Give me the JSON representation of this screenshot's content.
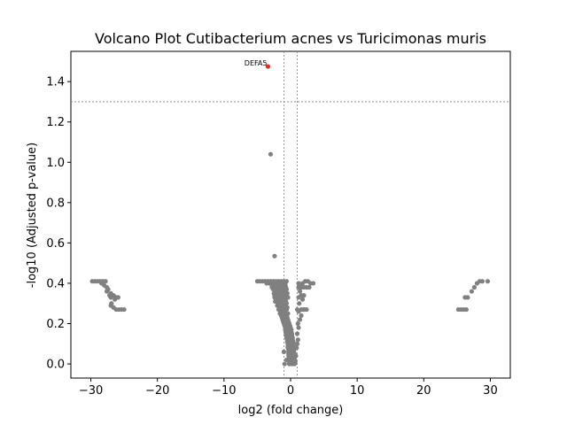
{
  "chart_data": {
    "type": "scatter",
    "title": "Volcano Plot Cutibacterium acnes vs Turicimonas muris",
    "xlabel": "log2 (fold change)",
    "ylabel": "-log10 (Adjusted p-value)",
    "xlim": [
      -33,
      33
    ],
    "ylim": [
      -0.07,
      1.55
    ],
    "xticks": [
      -30,
      -20,
      -10,
      0,
      10,
      20,
      30
    ],
    "xtick_labels": [
      "−30",
      "−20",
      "−10",
      "0",
      "10",
      "20",
      "30"
    ],
    "yticks": [
      0.0,
      0.2,
      0.4,
      0.6,
      0.8,
      1.0,
      1.2,
      1.4
    ],
    "ytick_labels": [
      "0.0",
      "0.2",
      "0.4",
      "0.6",
      "0.8",
      "1.0",
      "1.2",
      "1.4"
    ],
    "threshold_lines": {
      "vertical": [
        -1,
        1
      ],
      "horizontal": [
        1.3
      ]
    },
    "grid": false,
    "colors": {
      "nonsignificant": "#808080",
      "significant": "#e8281f",
      "threshold": "#808080"
    },
    "annotations": [
      {
        "text": "DEFA5",
        "x": -3.4,
        "y": 1.475
      }
    ],
    "series": [
      {
        "color": "#e8281f",
        "points": [
          [
            -3.4,
            1.475
          ]
        ]
      },
      {
        "color": "#808080",
        "points": [
          [
            -3.0,
            1.04
          ],
          [
            -2.4,
            0.535
          ],
          [
            -29.8,
            0.41
          ],
          [
            -29.4,
            0.41
          ],
          [
            -29.0,
            0.41
          ],
          [
            -28.6,
            0.41
          ],
          [
            -28.2,
            0.41
          ],
          [
            -27.8,
            0.41
          ],
          [
            -28.4,
            0.4
          ],
          [
            -28.0,
            0.39
          ],
          [
            -27.6,
            0.38
          ],
          [
            -27.4,
            0.37
          ],
          [
            -27.6,
            0.36
          ],
          [
            -27.0,
            0.35
          ],
          [
            -27.2,
            0.34
          ],
          [
            -26.6,
            0.34
          ],
          [
            -26.2,
            0.33
          ],
          [
            -27.0,
            0.33
          ],
          [
            -26.4,
            0.32
          ],
          [
            -25.9,
            0.33
          ],
          [
            -26.9,
            0.3
          ],
          [
            -27.0,
            0.29
          ],
          [
            -26.6,
            0.28
          ],
          [
            -26.2,
            0.27
          ],
          [
            -25.8,
            0.27
          ],
          [
            -25.4,
            0.27
          ],
          [
            -25.0,
            0.27
          ],
          [
            25.2,
            0.27
          ],
          [
            25.6,
            0.27
          ],
          [
            26.0,
            0.27
          ],
          [
            26.4,
            0.27
          ],
          [
            26.2,
            0.33
          ],
          [
            26.6,
            0.33
          ],
          [
            27.2,
            0.36
          ],
          [
            27.6,
            0.38
          ],
          [
            28.0,
            0.4
          ],
          [
            28.4,
            0.41
          ],
          [
            28.8,
            0.41
          ],
          [
            29.6,
            0.41
          ],
          [
            -5.0,
            0.41
          ],
          [
            -4.6,
            0.41
          ],
          [
            -4.2,
            0.41
          ],
          [
            -3.8,
            0.41
          ],
          [
            -3.4,
            0.41
          ],
          [
            -3.0,
            0.41
          ],
          [
            -2.6,
            0.41
          ],
          [
            -2.2,
            0.41
          ],
          [
            -1.8,
            0.41
          ],
          [
            -1.4,
            0.41
          ],
          [
            -1.0,
            0.41
          ],
          [
            -0.6,
            0.41
          ],
          [
            -3.6,
            0.4
          ],
          [
            -3.2,
            0.4
          ],
          [
            -2.8,
            0.4
          ],
          [
            -2.4,
            0.4
          ],
          [
            -2.0,
            0.4
          ],
          [
            -1.6,
            0.4
          ],
          [
            -1.2,
            0.4
          ],
          [
            -0.8,
            0.4
          ],
          [
            -2.8,
            0.39
          ],
          [
            -2.4,
            0.39
          ],
          [
            -2.0,
            0.39
          ],
          [
            -1.6,
            0.39
          ],
          [
            -1.2,
            0.39
          ],
          [
            -0.8,
            0.39
          ],
          [
            -2.8,
            0.38
          ],
          [
            -2.3,
            0.38
          ],
          [
            -1.9,
            0.38
          ],
          [
            -1.5,
            0.38
          ],
          [
            -1.1,
            0.38
          ],
          [
            -0.7,
            0.38
          ],
          [
            -2.6,
            0.37
          ],
          [
            -2.2,
            0.37
          ],
          [
            -1.8,
            0.37
          ],
          [
            -1.4,
            0.37
          ],
          [
            -1.0,
            0.37
          ],
          [
            -0.6,
            0.37
          ],
          [
            -2.0,
            0.36
          ],
          [
            -1.6,
            0.36
          ],
          [
            -1.2,
            0.36
          ],
          [
            -0.8,
            0.36
          ],
          [
            -2.5,
            0.35
          ],
          [
            -2.1,
            0.35
          ],
          [
            -1.7,
            0.35
          ],
          [
            -1.3,
            0.35
          ],
          [
            -0.9,
            0.35
          ],
          [
            -0.5,
            0.35
          ],
          [
            -2.4,
            0.34
          ],
          [
            -2.0,
            0.34
          ],
          [
            -1.6,
            0.34
          ],
          [
            -1.2,
            0.34
          ],
          [
            -0.8,
            0.34
          ],
          [
            -2.4,
            0.33
          ],
          [
            -2.0,
            0.33
          ],
          [
            -1.6,
            0.33
          ],
          [
            -1.2,
            0.33
          ],
          [
            -0.8,
            0.33
          ],
          [
            -0.4,
            0.33
          ],
          [
            -2.0,
            0.32
          ],
          [
            -1.6,
            0.32
          ],
          [
            -1.2,
            0.32
          ],
          [
            -0.8,
            0.32
          ],
          [
            -2.3,
            0.31
          ],
          [
            -1.9,
            0.31
          ],
          [
            -1.5,
            0.31
          ],
          [
            -1.1,
            0.31
          ],
          [
            -0.7,
            0.31
          ],
          [
            -1.8,
            0.3
          ],
          [
            -1.4,
            0.3
          ],
          [
            -1.0,
            0.3
          ],
          [
            -0.6,
            0.3
          ],
          [
            -2.0,
            0.29
          ],
          [
            -1.6,
            0.29
          ],
          [
            -1.2,
            0.29
          ],
          [
            -0.8,
            0.29
          ],
          [
            -1.7,
            0.28
          ],
          [
            -1.3,
            0.28
          ],
          [
            -0.9,
            0.28
          ],
          [
            -0.5,
            0.28
          ],
          [
            -1.8,
            0.27
          ],
          [
            -1.4,
            0.27
          ],
          [
            -1.0,
            0.27
          ],
          [
            -0.6,
            0.27
          ],
          [
            -1.5,
            0.26
          ],
          [
            -1.1,
            0.26
          ],
          [
            -0.7,
            0.26
          ],
          [
            -1.6,
            0.25
          ],
          [
            -1.2,
            0.25
          ],
          [
            -0.8,
            0.25
          ],
          [
            -0.4,
            0.25
          ],
          [
            -1.4,
            0.24
          ],
          [
            -1.0,
            0.24
          ],
          [
            -0.6,
            0.24
          ],
          [
            -1.3,
            0.23
          ],
          [
            -0.9,
            0.23
          ],
          [
            -0.5,
            0.23
          ],
          [
            -1.2,
            0.22
          ],
          [
            -0.8,
            0.22
          ],
          [
            -0.4,
            0.22
          ],
          [
            -1.1,
            0.21
          ],
          [
            -0.7,
            0.21
          ],
          [
            -0.3,
            0.21
          ],
          [
            -1.0,
            0.2
          ],
          [
            -0.6,
            0.2
          ],
          [
            -0.2,
            0.2
          ],
          [
            -0.9,
            0.19
          ],
          [
            -0.5,
            0.19
          ],
          [
            -0.1,
            0.19
          ],
          [
            -0.8,
            0.18
          ],
          [
            -0.4,
            0.18
          ],
          [
            0.0,
            0.18
          ],
          [
            -0.8,
            0.17
          ],
          [
            -0.4,
            0.17
          ],
          [
            0.1,
            0.17
          ],
          [
            -0.7,
            0.16
          ],
          [
            -0.3,
            0.16
          ],
          [
            0.1,
            0.16
          ],
          [
            -0.7,
            0.15
          ],
          [
            -0.3,
            0.15
          ],
          [
            0.2,
            0.15
          ],
          [
            -0.6,
            0.14
          ],
          [
            -0.2,
            0.14
          ],
          [
            0.2,
            0.14
          ],
          [
            -0.6,
            0.13
          ],
          [
            -0.2,
            0.13
          ],
          [
            0.3,
            0.13
          ],
          [
            -0.5,
            0.12
          ],
          [
            -0.1,
            0.12
          ],
          [
            0.3,
            0.12
          ],
          [
            -0.5,
            0.11
          ],
          [
            -0.1,
            0.11
          ],
          [
            0.4,
            0.11
          ],
          [
            -0.4,
            0.1
          ],
          [
            0.0,
            0.1
          ],
          [
            0.4,
            0.1
          ],
          [
            -0.4,
            0.09
          ],
          [
            0.0,
            0.09
          ],
          [
            0.4,
            0.09
          ],
          [
            -0.4,
            0.08
          ],
          [
            0.0,
            0.08
          ],
          [
            0.5,
            0.08
          ],
          [
            -0.3,
            0.07
          ],
          [
            0.1,
            0.07
          ],
          [
            0.5,
            0.07
          ],
          [
            -0.3,
            0.06
          ],
          [
            0.1,
            0.06
          ],
          [
            0.5,
            0.06
          ],
          [
            -0.3,
            0.05
          ],
          [
            0.1,
            0.05
          ],
          [
            0.6,
            0.05
          ],
          [
            -0.3,
            0.04
          ],
          [
            0.1,
            0.04
          ],
          [
            0.6,
            0.04
          ],
          [
            -0.2,
            0.03
          ],
          [
            0.2,
            0.03
          ],
          [
            0.6,
            0.03
          ],
          [
            -0.2,
            0.02
          ],
          [
            0.2,
            0.02
          ],
          [
            0.6,
            0.02
          ],
          [
            -0.2,
            0.01
          ],
          [
            0.2,
            0.01
          ],
          [
            0.7,
            0.01
          ],
          [
            -0.2,
            0.0
          ],
          [
            0.2,
            0.0
          ],
          [
            0.6,
            0.0
          ],
          [
            0.8,
            0.04
          ],
          [
            0.9,
            0.08
          ],
          [
            1.0,
            0.1
          ],
          [
            1.1,
            0.12
          ],
          [
            1.0,
            0.15
          ],
          [
            1.2,
            0.18
          ],
          [
            1.1,
            0.2
          ],
          [
            1.4,
            0.22
          ],
          [
            1.6,
            0.24
          ],
          [
            1.2,
            0.26
          ],
          [
            1.6,
            0.27
          ],
          [
            1.9,
            0.27
          ],
          [
            2.1,
            0.27
          ],
          [
            2.4,
            0.27
          ],
          [
            1.0,
            0.27
          ],
          [
            1.3,
            0.3
          ],
          [
            1.8,
            0.32
          ],
          [
            1.2,
            0.33
          ],
          [
            1.6,
            0.34
          ],
          [
            2.0,
            0.34
          ],
          [
            1.4,
            0.36
          ],
          [
            1.6,
            0.38
          ],
          [
            1.2,
            0.38
          ],
          [
            2.0,
            0.38
          ],
          [
            2.4,
            0.38
          ],
          [
            2.8,
            0.38
          ],
          [
            1.4,
            0.39
          ],
          [
            1.8,
            0.4
          ],
          [
            2.2,
            0.41
          ],
          [
            2.6,
            0.41
          ],
          [
            3.0,
            0.4
          ],
          [
            3.4,
            0.4
          ],
          [
            1.2,
            0.4
          ],
          [
            -0.9,
            0.0
          ],
          [
            -0.6,
            0.02
          ],
          [
            -1.0,
            0.06
          ]
        ]
      }
    ]
  }
}
